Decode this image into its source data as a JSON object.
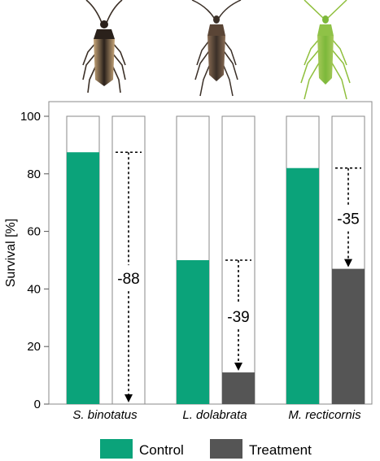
{
  "chart_data": {
    "type": "bar",
    "categories": [
      "S. binotatus",
      "L. dolabrata",
      "M. recticornis"
    ],
    "ylabel": "Survival [%]",
    "ylim": [
      0,
      100
    ],
    "yticks": [
      0,
      20,
      40,
      60,
      80,
      100
    ],
    "grid": false,
    "legend_position": "bottom",
    "series": [
      {
        "name": "Control",
        "values": [
          87.5,
          50,
          82
        ],
        "color": "#0ba37a"
      },
      {
        "name": "Treatment",
        "values": [
          0,
          11,
          47
        ],
        "color": "#555555"
      }
    ],
    "background_fill": "#ffffff",
    "annotations": [
      {
        "category": "S. binotatus",
        "from": 87.5,
        "to": 0,
        "label": "-88"
      },
      {
        "category": "L. dolabrata",
        "from": 50,
        "to": 11,
        "label": "-39"
      },
      {
        "category": "M. recticornis",
        "from": 82,
        "to": 47,
        "label": "-35"
      }
    ],
    "insect_icons": [
      "bug-icon",
      "bug-icon",
      "bug-icon"
    ]
  }
}
